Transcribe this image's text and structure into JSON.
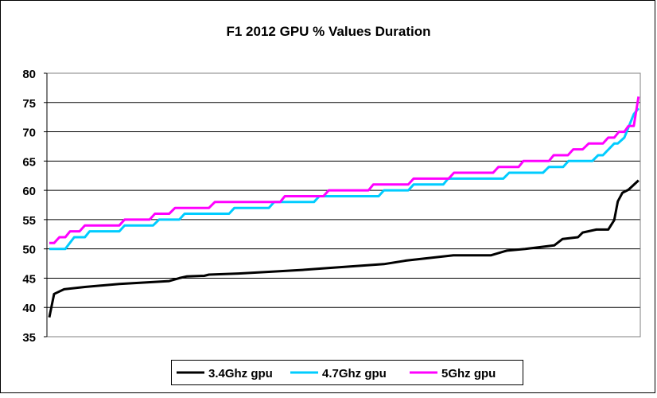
{
  "chart_data": {
    "type": "line",
    "title": "F1 2012 GPU % Values Duration",
    "xlabel": "",
    "ylabel": "",
    "xlim": [
      0,
      100
    ],
    "ylim": [
      35,
      80
    ],
    "yticks": [
      35,
      40,
      45,
      50,
      55,
      60,
      65,
      70,
      75,
      80
    ],
    "ytick_labels": [
      "35",
      "40",
      "45",
      "50",
      "55",
      "60",
      "65",
      "70",
      "75",
      "80"
    ],
    "grid": "horizontal",
    "legend_position": "bottom",
    "series": [
      {
        "name": "3.4Ghz gpu",
        "color": "#000000",
        "points": [
          [
            0.4,
            38.3
          ],
          [
            1.2,
            42.3
          ],
          [
            2.9,
            43.1
          ],
          [
            6.4,
            43.5
          ],
          [
            12.2,
            44.0
          ],
          [
            20.6,
            44.5
          ],
          [
            22.3,
            45.0
          ],
          [
            23.6,
            45.3
          ],
          [
            26.5,
            45.4
          ],
          [
            27.3,
            45.6
          ],
          [
            32.3,
            45.8
          ],
          [
            37.7,
            46.1
          ],
          [
            43.0,
            46.4
          ],
          [
            47.1,
            46.7
          ],
          [
            56.8,
            47.4
          ],
          [
            60.5,
            48.0
          ],
          [
            68.5,
            48.9
          ],
          [
            74.8,
            48.9
          ],
          [
            77.5,
            49.7
          ],
          [
            80.6,
            50.0
          ],
          [
            85.5,
            50.6
          ],
          [
            86.9,
            51.7
          ],
          [
            89.5,
            52.0
          ],
          [
            90.3,
            52.8
          ],
          [
            92.6,
            53.3
          ],
          [
            94.6,
            53.3
          ],
          [
            95.6,
            54.9
          ],
          [
            96.2,
            58.1
          ],
          [
            97.0,
            59.6
          ],
          [
            98.0,
            60.1
          ],
          [
            99.7,
            61.7
          ]
        ]
      },
      {
        "name": "4.7Ghz gpu",
        "color": "#00CCFF",
        "points": [
          [
            0.4,
            50
          ],
          [
            3.1,
            50
          ],
          [
            4.6,
            52
          ],
          [
            6.4,
            52
          ],
          [
            7.2,
            53
          ],
          [
            12.2,
            53
          ],
          [
            13.1,
            54
          ],
          [
            17.9,
            54
          ],
          [
            18.9,
            55
          ],
          [
            22.3,
            55
          ],
          [
            23.2,
            56
          ],
          [
            30.7,
            56
          ],
          [
            31.6,
            57
          ],
          [
            37.4,
            57
          ],
          [
            38.3,
            58
          ],
          [
            45.0,
            58
          ],
          [
            45.9,
            59
          ],
          [
            55.9,
            59
          ],
          [
            56.8,
            60
          ],
          [
            60.9,
            60
          ],
          [
            61.8,
            61
          ],
          [
            66.8,
            61
          ],
          [
            67.6,
            62
          ],
          [
            76.9,
            62
          ],
          [
            77.9,
            63
          ],
          [
            83.6,
            63
          ],
          [
            84.6,
            64
          ],
          [
            87.0,
            64
          ],
          [
            87.9,
            65
          ],
          [
            91.9,
            65
          ],
          [
            92.9,
            66
          ],
          [
            93.7,
            66
          ],
          [
            95.6,
            68
          ],
          [
            96.2,
            68
          ],
          [
            97.3,
            69
          ],
          [
            98.9,
            73
          ],
          [
            99.7,
            74
          ]
        ]
      },
      {
        "name": "5Ghz gpu",
        "color": "#FF00FF",
        "points": [
          [
            0.4,
            51
          ],
          [
            1.2,
            51
          ],
          [
            2.1,
            52
          ],
          [
            3.1,
            52
          ],
          [
            3.9,
            53
          ],
          [
            5.5,
            53
          ],
          [
            6.4,
            54
          ],
          [
            12.2,
            54
          ],
          [
            13.1,
            55
          ],
          [
            17.3,
            55
          ],
          [
            18.2,
            56
          ],
          [
            20.6,
            56
          ],
          [
            21.6,
            57
          ],
          [
            27.3,
            57
          ],
          [
            28.3,
            58
          ],
          [
            39.3,
            58
          ],
          [
            40.1,
            59
          ],
          [
            46.6,
            59
          ],
          [
            47.5,
            60
          ],
          [
            54.2,
            60
          ],
          [
            55.0,
            61
          ],
          [
            60.9,
            61
          ],
          [
            61.8,
            62
          ],
          [
            67.7,
            62
          ],
          [
            68.6,
            63
          ],
          [
            75.2,
            63
          ],
          [
            76.1,
            64
          ],
          [
            79.5,
            64
          ],
          [
            80.3,
            65
          ],
          [
            84.6,
            65
          ],
          [
            85.4,
            66
          ],
          [
            87.8,
            66
          ],
          [
            88.7,
            67
          ],
          [
            90.3,
            67
          ],
          [
            91.3,
            68
          ],
          [
            93.7,
            68
          ],
          [
            94.6,
            69
          ],
          [
            95.6,
            69
          ],
          [
            96.4,
            70
          ],
          [
            97.3,
            70
          ],
          [
            98.0,
            71
          ],
          [
            98.9,
            71
          ],
          [
            99.7,
            76
          ]
        ]
      }
    ]
  }
}
